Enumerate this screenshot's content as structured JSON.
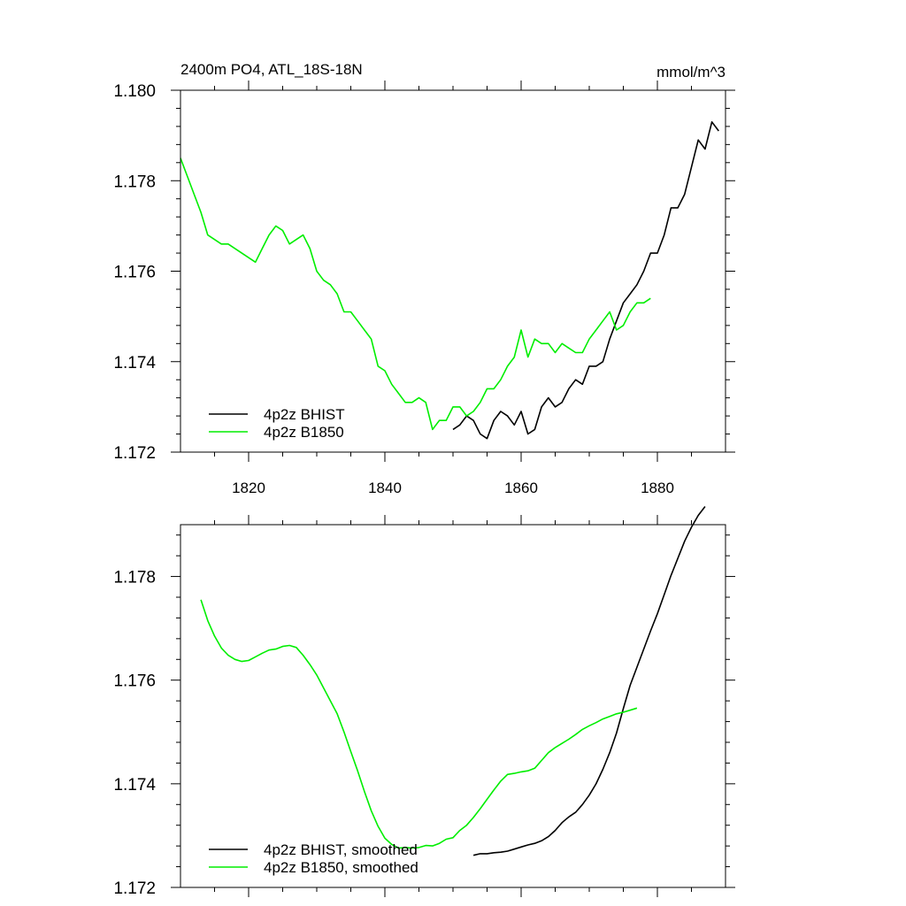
{
  "chart_data": [
    {
      "type": "line",
      "title": "2400m PO4, ATL_18S-18N",
      "units": "mmol/m^3",
      "xlim": [
        1810,
        1890
      ],
      "ylim": [
        1.172,
        1.18
      ],
      "xticks": [
        1820,
        1840,
        1860,
        1880
      ],
      "xtick_labels": [
        "1820",
        "1840",
        "1860",
        "1880"
      ],
      "yticks": [
        1.172,
        1.174,
        1.176,
        1.178,
        1.18
      ],
      "ytick_labels": [
        "1.172",
        "1.174",
        "1.176",
        "1.178",
        "1.180"
      ],
      "legend_position": "bottom-left",
      "series": [
        {
          "name": "4p2z BHIST",
          "color": "#000000",
          "x": [
            1850,
            1851,
            1852,
            1853,
            1854,
            1855,
            1856,
            1857,
            1858,
            1859,
            1860,
            1861,
            1862,
            1863,
            1864,
            1865,
            1866,
            1867,
            1868,
            1869,
            1870,
            1871,
            1872,
            1873,
            1874,
            1875,
            1876,
            1877,
            1878,
            1879,
            1880,
            1881,
            1882,
            1883,
            1884,
            1885,
            1886,
            1887,
            1888,
            1889
          ],
          "y": [
            1.1725,
            1.1726,
            1.1728,
            1.1727,
            1.1724,
            1.1723,
            1.1727,
            1.1729,
            1.1728,
            1.1726,
            1.1729,
            1.1724,
            1.1725,
            1.173,
            1.1732,
            1.173,
            1.1731,
            1.1734,
            1.1736,
            1.1735,
            1.1739,
            1.1739,
            1.174,
            1.1745,
            1.1749,
            1.1753,
            1.1755,
            1.1757,
            1.176,
            1.1764,
            1.1764,
            1.1768,
            1.1774,
            1.1774,
            1.1777,
            1.1783,
            1.1789,
            1.1787,
            1.1793,
            1.1791
          ]
        },
        {
          "name": "4p2z B1850",
          "color": "#00ee00",
          "x": [
            1810,
            1811,
            1812,
            1813,
            1814,
            1815,
            1816,
            1817,
            1818,
            1819,
            1820,
            1821,
            1822,
            1823,
            1824,
            1825,
            1826,
            1827,
            1828,
            1829,
            1830,
            1831,
            1832,
            1833,
            1834,
            1835,
            1836,
            1837,
            1838,
            1839,
            1840,
            1841,
            1842,
            1843,
            1844,
            1845,
            1846,
            1847,
            1848,
            1849,
            1850,
            1851,
            1852,
            1853,
            1854,
            1855,
            1856,
            1857,
            1858,
            1859,
            1860,
            1861,
            1862,
            1863,
            1864,
            1865,
            1866,
            1867,
            1868,
            1869,
            1870,
            1871,
            1872,
            1873,
            1874,
            1875,
            1876,
            1877,
            1878,
            1879
          ],
          "y": [
            1.1785,
            1.1781,
            1.1777,
            1.1773,
            1.1768,
            1.1767,
            1.1766,
            1.1766,
            1.1765,
            1.1764,
            1.1763,
            1.1762,
            1.1765,
            1.1768,
            1.177,
            1.1769,
            1.1766,
            1.1767,
            1.1768,
            1.1765,
            1.176,
            1.1758,
            1.1757,
            1.1755,
            1.1751,
            1.1751,
            1.1749,
            1.1747,
            1.1745,
            1.1739,
            1.1738,
            1.1735,
            1.1733,
            1.1731,
            1.1731,
            1.1732,
            1.1731,
            1.1725,
            1.1727,
            1.1727,
            1.173,
            1.173,
            1.1728,
            1.1729,
            1.1731,
            1.1734,
            1.1734,
            1.1736,
            1.1739,
            1.1741,
            1.1747,
            1.1741,
            1.1745,
            1.1744,
            1.1744,
            1.1742,
            1.1744,
            1.1743,
            1.1742,
            1.1742,
            1.1745,
            1.1747,
            1.1749,
            1.1751,
            1.1747,
            1.1748,
            1.1751,
            1.1753,
            1.1753,
            1.1754
          ]
        }
      ]
    },
    {
      "type": "line",
      "title": "",
      "units": "",
      "xlim": [
        1810,
        1890
      ],
      "ylim": [
        1.172,
        1.179
      ],
      "xticks": [
        1820,
        1840,
        1860,
        1880
      ],
      "xtick_labels": [
        "",
        "",
        "",
        ""
      ],
      "yticks": [
        1.172,
        1.174,
        1.176,
        1.178
      ],
      "ytick_labels": [
        "1.172",
        "1.174",
        "1.176",
        "1.178"
      ],
      "legend_position": "bottom-left",
      "series": [
        {
          "name": "4p2z BHIST, smoothed",
          "color": "#000000",
          "x": [
            1853,
            1854,
            1855,
            1856,
            1857,
            1858,
            1859,
            1860,
            1861,
            1862,
            1863,
            1864,
            1865,
            1866,
            1867,
            1868,
            1869,
            1870,
            1871,
            1872,
            1873,
            1874,
            1875,
            1876,
            1877,
            1878,
            1879,
            1880,
            1881,
            1882,
            1883,
            1884,
            1885,
            1886,
            1887
          ],
          "y": [
            1.17262,
            1.17265,
            1.17265,
            1.17267,
            1.17268,
            1.1727,
            1.17274,
            1.17278,
            1.17282,
            1.17285,
            1.1729,
            1.17298,
            1.1731,
            1.17325,
            1.17336,
            1.17345,
            1.1736,
            1.17378,
            1.174,
            1.17428,
            1.1746,
            1.17498,
            1.17545,
            1.1759,
            1.17625,
            1.1766,
            1.17695,
            1.17728,
            1.17765,
            1.17802,
            1.17835,
            1.17868,
            1.17895,
            1.17918,
            1.17935
          ]
        },
        {
          "name": "4p2z B1850, smoothed",
          "color": "#00ee00",
          "x": [
            1813,
            1814,
            1815,
            1816,
            1817,
            1818,
            1819,
            1820,
            1821,
            1822,
            1823,
            1824,
            1825,
            1826,
            1827,
            1828,
            1829,
            1830,
            1831,
            1832,
            1833,
            1834,
            1835,
            1836,
            1837,
            1838,
            1839,
            1840,
            1841,
            1842,
            1843,
            1844,
            1845,
            1846,
            1847,
            1848,
            1849,
            1850,
            1851,
            1852,
            1853,
            1854,
            1855,
            1856,
            1857,
            1858,
            1859,
            1860,
            1861,
            1862,
            1863,
            1864,
            1865,
            1866,
            1867,
            1868,
            1869,
            1870,
            1871,
            1872,
            1873,
            1874,
            1875,
            1876,
            1877
          ],
          "y": [
            1.17755,
            1.17715,
            1.17685,
            1.17662,
            1.17648,
            1.1764,
            1.17636,
            1.17638,
            1.17645,
            1.17652,
            1.17658,
            1.1766,
            1.17665,
            1.17667,
            1.17663,
            1.17648,
            1.1763,
            1.1761,
            1.17585,
            1.1756,
            1.17535,
            1.175,
            1.17462,
            1.17425,
            1.17385,
            1.17348,
            1.17318,
            1.17295,
            1.17283,
            1.17276,
            1.17277,
            1.17276,
            1.17277,
            1.17281,
            1.1728,
            1.17285,
            1.17293,
            1.17296,
            1.1731,
            1.1732,
            1.17335,
            1.17352,
            1.1737,
            1.17388,
            1.17405,
            1.17418,
            1.1742,
            1.17423,
            1.17425,
            1.1743,
            1.17445,
            1.1746,
            1.1747,
            1.17478,
            1.17486,
            1.17495,
            1.17505,
            1.17512,
            1.17518,
            1.17525,
            1.1753,
            1.17535,
            1.17538,
            1.17542,
            1.17546
          ]
        }
      ]
    }
  ]
}
